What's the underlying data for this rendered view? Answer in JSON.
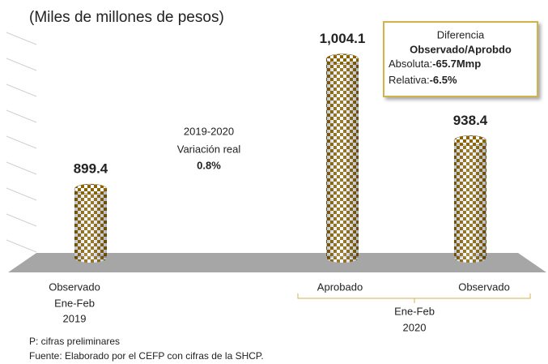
{
  "chart_data": {
    "type": "bar",
    "subtitle": "(Miles de millones de pesos)",
    "categories": [
      "Observado",
      "Aprobado",
      "Observado"
    ],
    "category_groups": [
      [
        "Ene-Feb",
        "2019"
      ],
      [
        "Ene-Feb",
        "2020"
      ]
    ],
    "values": [
      899.4,
      1004.1,
      938.4
    ],
    "value_labels": [
      "899.4",
      "1,004.1",
      "938.4"
    ],
    "color": "#8b6508",
    "ylim": [
      844,
      1030
    ],
    "variation": {
      "lines": [
        "2019-2020",
        "Variación real"
      ],
      "value": "0.8%"
    },
    "difference_box": {
      "title": "Diferencia",
      "subtitle": "Observado/Aprobdo",
      "absolute": {
        "label": "Absoluta:",
        "value": "-65.7Mmp"
      },
      "relative": {
        "label": "Relativa:",
        "value": "-6.5%"
      }
    },
    "notes": [
      "P: cifras preliminares",
      "Fuente: Elaborado por el CEFP con cifras de la SHCP."
    ]
  }
}
